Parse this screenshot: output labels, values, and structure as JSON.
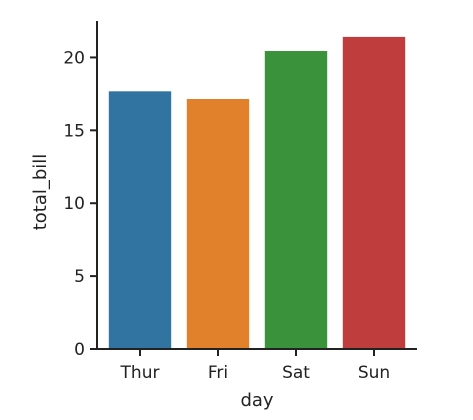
{
  "chart_data": {
    "type": "bar",
    "categories": [
      "Thur",
      "Fri",
      "Sat",
      "Sun"
    ],
    "values": [
      17.68,
      17.15,
      20.44,
      21.41
    ],
    "colors": [
      "#3274a1",
      "#e1812c",
      "#3a923a",
      "#c03d3e"
    ],
    "title": "",
    "xlabel": "day",
    "ylabel": "total_bill",
    "ylim": [
      0,
      22.5
    ],
    "yticks": [
      0,
      5,
      10,
      15,
      20
    ],
    "grid": false,
    "legend": "none"
  }
}
